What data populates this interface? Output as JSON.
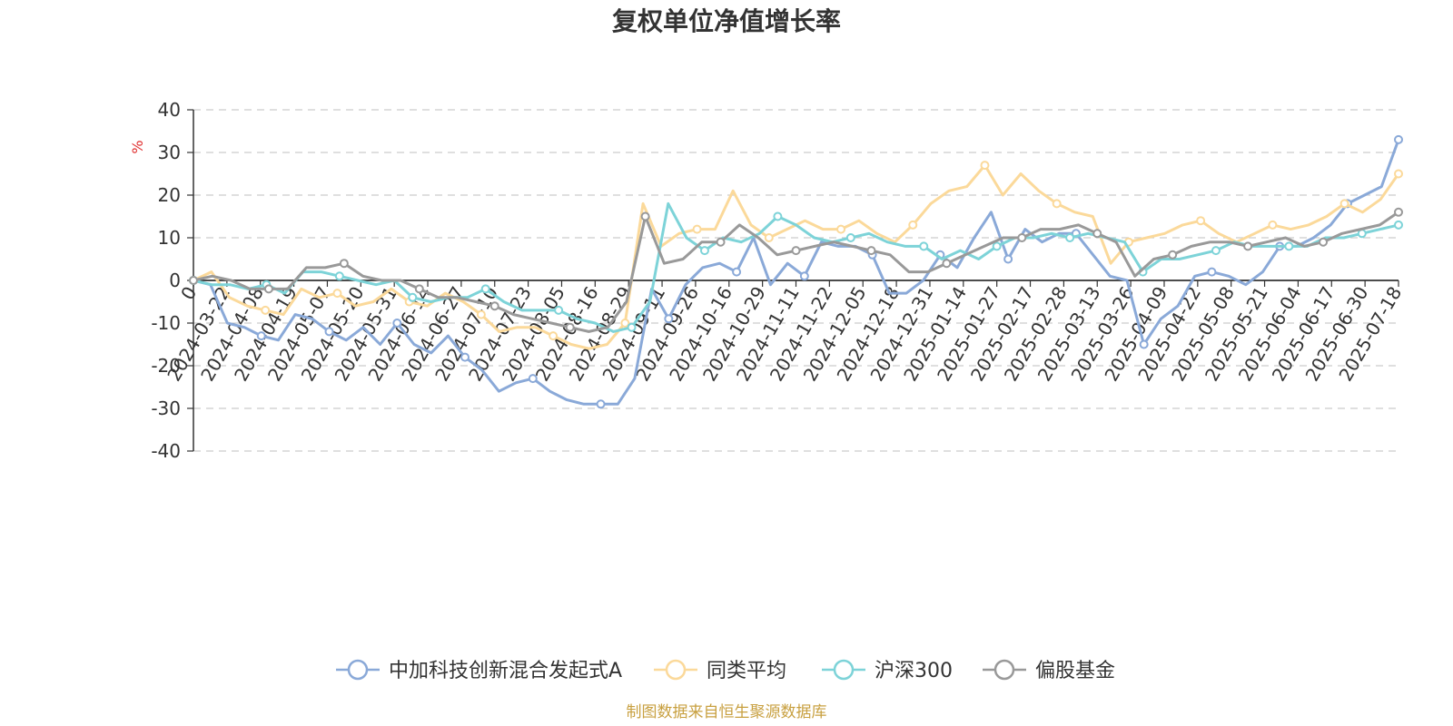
{
  "chart_data": {
    "type": "line",
    "title": "复权单位净值增长率",
    "ylabel": "%",
    "ylim": [
      -40,
      40
    ],
    "yticks": [
      -40,
      -30,
      -20,
      -10,
      0,
      10,
      20,
      30,
      40
    ],
    "x_tick_labels": [
      "0",
      "2024-03-22",
      "2024-04-08",
      "2024-04-19",
      "2024-05-07",
      "2024-05-20",
      "2024-05-31",
      "2024-06-14",
      "2024-06-27",
      "2024-07-10",
      "2024-07-23",
      "2024-08-05",
      "2024-08-16",
      "2024-08-29",
      "2024-09-11",
      "2024-09-26",
      "2024-10-16",
      "2024-10-29",
      "2024-11-11",
      "2024-11-22",
      "2024-12-05",
      "2024-12-18",
      "2024-12-31",
      "2025-01-14",
      "2025-01-27",
      "2025-02-17",
      "2025-02-28",
      "2025-03-13",
      "2025-03-26",
      "2025-04-09",
      "2025-04-22",
      "2025-05-08",
      "2025-05-21",
      "2025-06-04",
      "2025-06-17",
      "2025-06-30",
      "2025-07-18"
    ],
    "grid": true,
    "legend_position": "bottom",
    "series": [
      {
        "name": "中加科技创新混合发起式A",
        "color": "#8aa9d8",
        "values": [
          0,
          -1,
          -10,
          -11,
          -13,
          -14,
          -8,
          -9,
          -12,
          -14,
          -11,
          -15,
          -10,
          -15,
          -17,
          -13,
          -18,
          -21,
          -26,
          -24,
          -23,
          -26,
          -28,
          -29,
          -29,
          -29,
          -23,
          -2,
          -9,
          -1,
          3,
          4,
          2,
          10,
          -1,
          4,
          1,
          9,
          8,
          8,
          6,
          -3,
          -3,
          0,
          6,
          3,
          10,
          16,
          5,
          12,
          9,
          11,
          11,
          6,
          1,
          0,
          -15,
          -9,
          -6,
          1,
          2,
          1,
          -1,
          2,
          8,
          8,
          10,
          13,
          18,
          20,
          22,
          33
        ]
      },
      {
        "name": "同类平均",
        "color": "#fbd99a",
        "values": [
          0,
          2,
          -4,
          -6,
          -7,
          -8,
          -2,
          -4,
          -3,
          -6,
          -5,
          -2,
          -5,
          -6,
          -3,
          -5,
          -8,
          -12,
          -11,
          -11,
          -13,
          -15,
          -16,
          -15,
          -10,
          18,
          8,
          11,
          12,
          12,
          21,
          13,
          10,
          12,
          14,
          12,
          12,
          14,
          11,
          9,
          13,
          18,
          21,
          22,
          27,
          20,
          25,
          21,
          18,
          16,
          15,
          4,
          9,
          10,
          11,
          13,
          14,
          11,
          9,
          11,
          13,
          12,
          13,
          15,
          18,
          16,
          19,
          25
        ]
      },
      {
        "name": "沪深300",
        "color": "#7dd3d8",
        "values": [
          0,
          -1,
          -1,
          -2,
          -1,
          -3,
          2,
          2,
          1,
          0,
          -1,
          0,
          -4,
          -5,
          -4,
          -4,
          -2,
          -5,
          -7,
          -7,
          -7,
          -9,
          -10,
          -12,
          -11,
          -5,
          18,
          10,
          7,
          10,
          9,
          11,
          15,
          13,
          10,
          9,
          10,
          11,
          9,
          8,
          8,
          5,
          7,
          5,
          8,
          10,
          10,
          11,
          10,
          11,
          10,
          9,
          2,
          5,
          5,
          6,
          7,
          9,
          8,
          8,
          8,
          8,
          10,
          10,
          11,
          12,
          13
        ]
      },
      {
        "name": "偏股基金",
        "color": "#999999",
        "values": [
          0,
          1,
          0,
          -2,
          -2,
          -2,
          3,
          3,
          4,
          1,
          0,
          0,
          -2,
          -4,
          -4,
          -5,
          -6,
          -8,
          -9,
          -10,
          -11,
          -12,
          -11,
          -5,
          15,
          4,
          5,
          9,
          9,
          13,
          10,
          6,
          7,
          8,
          9,
          8,
          7,
          6,
          2,
          2,
          4,
          6,
          8,
          10,
          10,
          12,
          12,
          13,
          11,
          9,
          1,
          5,
          6,
          8,
          9,
          9,
          8,
          9,
          10,
          8,
          9,
          11,
          12,
          13,
          16
        ]
      }
    ]
  },
  "footer": {
    "source": "制图数据来自恒生聚源数据库"
  }
}
